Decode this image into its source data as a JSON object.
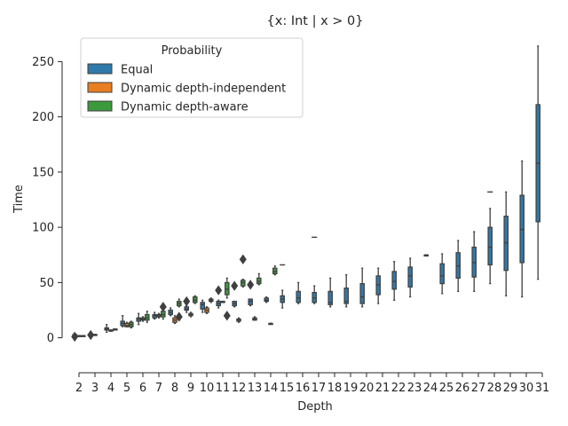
{
  "chart_data": {
    "type": "box",
    "title": "{x: Int | x > 0}",
    "xlabel": "Depth",
    "ylabel": "Time",
    "categories": [
      "2",
      "3",
      "4",
      "5",
      "6",
      "7",
      "8",
      "9",
      "10",
      "11",
      "12",
      "13",
      "14",
      "15",
      "16",
      "17",
      "18",
      "19",
      "20",
      "21",
      "22",
      "23",
      "24",
      "25",
      "26",
      "27",
      "28",
      "29",
      "30",
      "31"
    ],
    "yticks": [
      0,
      50,
      100,
      150,
      200,
      250
    ],
    "ylim": [
      -22,
      272
    ],
    "legend": {
      "title": "Probability",
      "placement": "top-left",
      "entries": [
        {
          "name": "Equal",
          "color": "#1f77b4"
        },
        {
          "name": "Dynamic depth-independent",
          "color": "#ff7f0e"
        },
        {
          "name": "Dynamic depth-aware",
          "color": "#2ca02c"
        }
      ]
    },
    "series": [
      {
        "name": "Equal",
        "color": "#1f77b4",
        "boxes": [
          {
            "depth": 2,
            "whislo": 2,
            "q1": 2,
            "med": 2.5,
            "q3": 3,
            "whishi": 3,
            "fliers": [
              1
            ]
          },
          {
            "depth": 3,
            "whislo": 3,
            "q1": 3,
            "med": 3,
            "q3": 3.5,
            "whishi": 3.5,
            "fliers": [
              2.5
            ]
          },
          {
            "depth": 4,
            "whislo": 5,
            "q1": 7,
            "med": 8,
            "q3": 9,
            "whishi": 12,
            "fliers": []
          },
          {
            "depth": 5,
            "whislo": 10,
            "q1": 11,
            "med": 13,
            "q3": 15,
            "whishi": 20,
            "fliers": []
          },
          {
            "depth": 6,
            "whislo": 12,
            "q1": 15,
            "med": 17,
            "q3": 18,
            "whishi": 22,
            "fliers": []
          },
          {
            "depth": 7,
            "whislo": 17,
            "q1": 18,
            "med": 20,
            "q3": 21,
            "whishi": 23,
            "fliers": []
          },
          {
            "depth": 8,
            "whislo": 20,
            "q1": 21,
            "med": 23,
            "q3": 25,
            "whishi": 27,
            "fliers": []
          },
          {
            "depth": 9,
            "whislo": 23,
            "q1": 25,
            "med": 26,
            "q3": 28,
            "whishi": 29,
            "fliers": []
          },
          {
            "depth": 10,
            "whislo": 23,
            "q1": 26,
            "med": 30,
            "q3": 32,
            "whishi": 34,
            "fliers": []
          },
          {
            "depth": 11,
            "whislo": 27,
            "q1": 29,
            "med": 31,
            "q3": 33,
            "whishi": 34,
            "fliers": []
          },
          {
            "depth": 12,
            "whislo": 28,
            "q1": 29,
            "med": 31,
            "q3": 33,
            "whishi": 33,
            "fliers": []
          },
          {
            "depth": 13,
            "whislo": 29,
            "q1": 30,
            "med": 33,
            "q3": 35,
            "whishi": 35,
            "fliers": []
          },
          {
            "depth": 14,
            "whislo": 32,
            "q1": 33,
            "med": 34,
            "q3": 36,
            "whishi": 37,
            "fliers": []
          },
          {
            "depth": 15,
            "whislo": 27,
            "q1": 32,
            "med": 35,
            "q3": 38,
            "whishi": 43,
            "fliers": []
          },
          {
            "depth": 16,
            "whislo": 31,
            "q1": 32,
            "med": 36,
            "q3": 42,
            "whishi": 50,
            "fliers": []
          },
          {
            "depth": 17,
            "whislo": 31,
            "q1": 32,
            "med": 36,
            "q3": 41,
            "whishi": 47,
            "fliers": []
          },
          {
            "depth": 18,
            "whislo": 28,
            "q1": 30,
            "med": 32,
            "q3": 42,
            "whishi": 54,
            "fliers": []
          },
          {
            "depth": 19,
            "whislo": 28,
            "q1": 31,
            "med": 33,
            "q3": 45,
            "whishi": 57,
            "fliers": []
          },
          {
            "depth": 20,
            "whislo": 28,
            "q1": 31,
            "med": 37,
            "q3": 49,
            "whishi": 63,
            "fliers": []
          },
          {
            "depth": 21,
            "whislo": 31,
            "q1": 39,
            "med": 48,
            "q3": 56,
            "whishi": 63,
            "fliers": []
          },
          {
            "depth": 22,
            "whislo": 34,
            "q1": 44,
            "med": 51,
            "q3": 60,
            "whishi": 69,
            "fliers": []
          },
          {
            "depth": 23,
            "whislo": 37,
            "q1": 46,
            "med": 56,
            "q3": 64,
            "whishi": 72,
            "fliers": []
          },
          {
            "depth": 24,
            "whislo": 75,
            "q1": 75,
            "med": 75,
            "q3": 75,
            "whishi": 75,
            "fliers": []
          },
          {
            "depth": 25,
            "whislo": 40,
            "q1": 49,
            "med": 56,
            "q3": 67,
            "whishi": 76,
            "fliers": []
          },
          {
            "depth": 26,
            "whislo": 42,
            "q1": 54,
            "med": 65,
            "q3": 77,
            "whishi": 88,
            "fliers": []
          },
          {
            "depth": 27,
            "whislo": 42,
            "q1": 55,
            "med": 68,
            "q3": 82,
            "whishi": 96,
            "fliers": []
          },
          {
            "depth": 28,
            "whislo": 49,
            "q1": 66,
            "med": 82,
            "q3": 100,
            "whishi": 117,
            "fliers": []
          },
          {
            "depth": 29,
            "whislo": 38,
            "q1": 61,
            "med": 86,
            "q3": 110,
            "whishi": 132,
            "fliers": []
          },
          {
            "depth": 30,
            "whislo": 37,
            "q1": 68,
            "med": 98,
            "q3": 129,
            "whishi": 160,
            "fliers": []
          },
          {
            "depth": 31,
            "whislo": 53,
            "q1": 105,
            "med": 158,
            "q3": 211,
            "whishi": 264,
            "fliers": []
          }
        ]
      },
      {
        "name": "Dynamic depth-independent",
        "color": "#ff7f0e",
        "boxes": [
          {
            "depth": 2,
            "whislo": 2,
            "q1": 2,
            "med": 2,
            "q3": 2,
            "whishi": 2,
            "fliers": []
          },
          {
            "depth": 3,
            "whislo": 3,
            "q1": 3,
            "med": 3,
            "q3": 3,
            "whishi": 3,
            "fliers": []
          },
          {
            "depth": 4,
            "whislo": 6,
            "q1": 6,
            "med": 7,
            "q3": 7,
            "whishi": 7,
            "fliers": []
          },
          {
            "depth": 5,
            "whislo": 10,
            "q1": 10,
            "med": 11,
            "q3": 13,
            "whishi": 14,
            "fliers": []
          },
          {
            "depth": 6,
            "whislo": 15,
            "q1": 16,
            "med": 17,
            "q3": 18,
            "whishi": 19,
            "fliers": []
          },
          {
            "depth": 7,
            "whislo": 18,
            "q1": 19,
            "med": 20,
            "q3": 21,
            "whishi": 22,
            "fliers": []
          },
          {
            "depth": 8,
            "whislo": 13,
            "q1": 14,
            "med": 16,
            "q3": 18,
            "whishi": 20,
            "fliers": []
          },
          {
            "depth": 9,
            "whislo": 19,
            "q1": 20,
            "med": 21,
            "q3": 22,
            "whishi": 23,
            "fliers": []
          },
          {
            "depth": 10,
            "whislo": 22,
            "q1": 23,
            "med": 25,
            "q3": 27,
            "whishi": 28,
            "fliers": []
          },
          {
            "depth": 11,
            "whislo": 32,
            "q1": 32,
            "med": 32,
            "q3": 33,
            "whishi": 33,
            "fliers": []
          },
          {
            "depth": 12,
            "whislo": 14,
            "q1": 15,
            "med": 16,
            "q3": 17,
            "whishi": 18,
            "fliers": []
          },
          {
            "depth": 13,
            "whislo": 16,
            "q1": 16,
            "med": 17,
            "q3": 18,
            "whishi": 19,
            "fliers": []
          },
          {
            "depth": 14,
            "whislo": 13,
            "q1": 13,
            "med": 13,
            "q3": 13,
            "whishi": 13,
            "fliers": []
          }
        ]
      },
      {
        "name": "Dynamic depth-aware",
        "color": "#2ca02c",
        "boxes": [
          {
            "depth": 2,
            "whislo": 2,
            "q1": 2,
            "med": 2,
            "q3": 2,
            "whishi": 2,
            "fliers": []
          },
          {
            "depth": 4,
            "whislo": 7,
            "q1": 7,
            "med": 8,
            "q3": 8,
            "whishi": 8,
            "fliers": []
          },
          {
            "depth": 5,
            "whislo": 9,
            "q1": 10,
            "med": 12,
            "q3": 14,
            "whishi": 15,
            "fliers": []
          },
          {
            "depth": 6,
            "whislo": 14,
            "q1": 16,
            "med": 18,
            "q3": 21,
            "whishi": 24,
            "fliers": []
          },
          {
            "depth": 7,
            "whislo": 17,
            "q1": 19,
            "med": 21,
            "q3": 24,
            "whishi": 26,
            "fliers": [
              28
            ]
          },
          {
            "depth": 8,
            "whislo": 28,
            "q1": 29,
            "med": 31,
            "q3": 33,
            "whishi": 35,
            "fliers": [
              19
            ]
          },
          {
            "depth": 9,
            "whislo": 31,
            "q1": 32,
            "med": 34,
            "q3": 37,
            "whishi": 38,
            "fliers": []
          },
          {
            "depth": 10,
            "whislo": 32,
            "q1": 33,
            "med": 34,
            "q3": 35,
            "whishi": 36,
            "fliers": []
          },
          {
            "depth": 11,
            "whislo": 36,
            "q1": 39,
            "med": 44,
            "q3": 50,
            "whishi": 54,
            "fliers": [
              20
            ]
          },
          {
            "depth": 12,
            "whislo": 46,
            "q1": 47,
            "med": 50,
            "q3": 52,
            "whishi": 53,
            "fliers": [
              71
            ]
          },
          {
            "depth": 13,
            "whislo": 48,
            "q1": 49,
            "med": 51,
            "q3": 54,
            "whishi": 58,
            "fliers": []
          },
          {
            "depth": 14,
            "whislo": 57,
            "q1": 58,
            "med": 60,
            "q3": 63,
            "whishi": 65,
            "fliers": []
          }
        ]
      }
    ],
    "extra_fliers": [
      {
        "series": "Equal",
        "depth": 9,
        "value": 33
      },
      {
        "series": "Equal",
        "depth": 11,
        "value": 43
      },
      {
        "series": "Equal",
        "depth": 12,
        "value": 47
      },
      {
        "series": "Equal",
        "depth": 13,
        "value": 48
      },
      {
        "series": "Equal",
        "depth": 15,
        "value": 66
      },
      {
        "series": "Equal",
        "depth": 17,
        "value": 91
      },
      {
        "series": "Equal",
        "depth": 28,
        "value": 132
      }
    ]
  }
}
